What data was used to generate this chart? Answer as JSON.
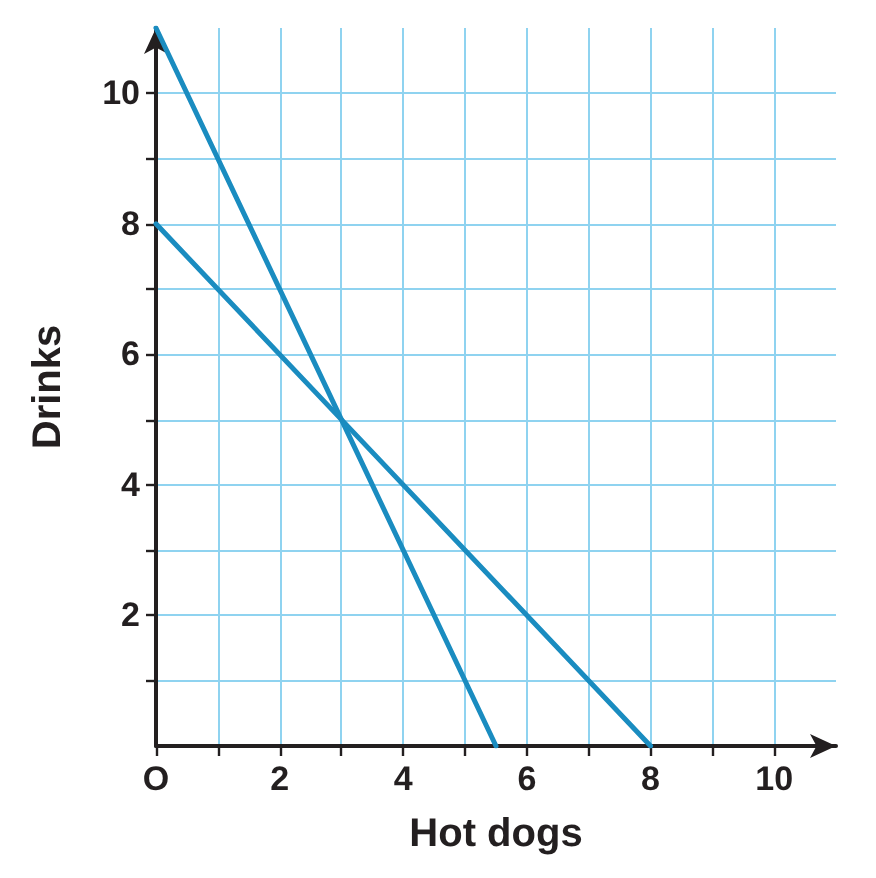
{
  "chart_data": {
    "type": "line",
    "xlabel": "Hot dogs",
    "ylabel": "Drinks",
    "series": [
      {
        "color": "#1a8cc0",
        "x": [
          0,
          3,
          8
        ],
        "values": [
          8,
          5,
          0
        ]
      },
      {
        "color": "#1a8cc0",
        "x": [
          0,
          3,
          5.5
        ],
        "values": [
          11,
          5,
          0
        ]
      }
    ],
    "xlim": [
      0,
      11
    ],
    "ylim": [
      0,
      11
    ],
    "xticks": [
      {
        "value": 0,
        "label": "O"
      },
      {
        "value": 1,
        "label": null
      },
      2,
      {
        "value": 3,
        "label": null
      },
      4,
      {
        "value": 5,
        "label": null
      },
      6,
      {
        "value": 7,
        "label": null
      },
      8,
      {
        "value": 9,
        "label": null
      },
      10
    ],
    "yticks": [
      {
        "value": 1,
        "label": null
      },
      2,
      {
        "value": 3,
        "label": null
      },
      4,
      {
        "value": 5,
        "label": null
      },
      6,
      {
        "value": 7,
        "label": null
      },
      8,
      {
        "value": 9,
        "label": null
      },
      10
    ],
    "grid": true,
    "marker": "none",
    "line_style": "solid"
  }
}
